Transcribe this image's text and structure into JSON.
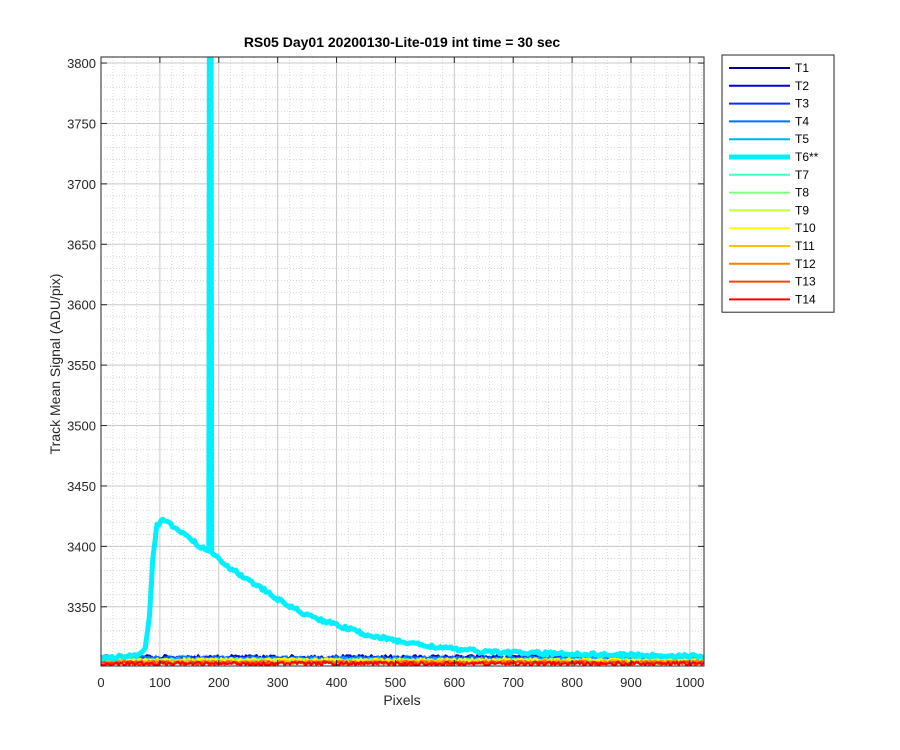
{
  "chart_data": {
    "type": "line",
    "title": "RS05 Day01 20200130-Lite-019 int time = 30 sec",
    "xlabel": "Pixels",
    "ylabel": "Track Mean Signal (ADU/pix)",
    "xlim": [
      0,
      1024
    ],
    "ylim": [
      3301,
      3805
    ],
    "xticks": [
      0,
      100,
      200,
      300,
      400,
      500,
      600,
      700,
      800,
      900,
      1000
    ],
    "yticks": [
      3350,
      3400,
      3450,
      3500,
      3550,
      3600,
      3650,
      3700,
      3750,
      3800
    ],
    "grid": true,
    "minor_grid": true,
    "legend_position": "outside-right",
    "series": [
      {
        "name": "T1",
        "color": "#00008f",
        "base": 3306,
        "noise": 1.6,
        "width": 2
      },
      {
        "name": "T2",
        "color": "#0000df",
        "base": 3308.5,
        "noise": 1.6,
        "width": 2
      },
      {
        "name": "T3",
        "color": "#0030ff",
        "base": 3307.5,
        "noise": 1.6,
        "width": 2
      },
      {
        "name": "T4",
        "color": "#0070ff",
        "base": 3307.5,
        "noise": 1.6,
        "width": 2
      },
      {
        "name": "T5",
        "color": "#00b0ff",
        "base": 3306.5,
        "noise": 1.6,
        "width": 2
      },
      {
        "name": "T6**",
        "color": "#00f0ff",
        "highlight": true,
        "width": 5,
        "points": [
          [
            0,
            3308
          ],
          [
            40,
            3309
          ],
          [
            60,
            3310
          ],
          [
            75,
            3316
          ],
          [
            82,
            3340
          ],
          [
            88,
            3390
          ],
          [
            95,
            3418
          ],
          [
            105,
            3421
          ],
          [
            115,
            3419
          ],
          [
            130,
            3414
          ],
          [
            150,
            3407
          ],
          [
            170,
            3399
          ],
          [
            183,
            3396
          ],
          [
            184,
            3805
          ],
          [
            187,
            3805
          ],
          [
            188,
            3395
          ],
          [
            200,
            3390
          ],
          [
            220,
            3382
          ],
          [
            250,
            3372
          ],
          [
            280,
            3363
          ],
          [
            300,
            3356
          ],
          [
            350,
            3343
          ],
          [
            400,
            3335
          ],
          [
            450,
            3327
          ],
          [
            500,
            3322
          ],
          [
            550,
            3318
          ],
          [
            600,
            3315
          ],
          [
            650,
            3313
          ],
          [
            700,
            3312
          ],
          [
            800,
            3311
          ],
          [
            900,
            3310
          ],
          [
            1024,
            3309
          ]
        ]
      },
      {
        "name": "T7",
        "color": "#40ffbf",
        "base": 3305.5,
        "noise": 1.6,
        "width": 2
      },
      {
        "name": "T8",
        "color": "#80ff80",
        "base": 3305.5,
        "noise": 1.6,
        "width": 2
      },
      {
        "name": "T9",
        "color": "#bfff40",
        "base": 3305,
        "noise": 1.6,
        "width": 2
      },
      {
        "name": "T10",
        "color": "#ffff00",
        "base": 3306,
        "noise": 1.6,
        "width": 2
      },
      {
        "name": "T11",
        "color": "#ffbf00",
        "base": 3304.5,
        "noise": 1.6,
        "width": 2
      },
      {
        "name": "T12",
        "color": "#ff8000",
        "base": 3304,
        "noise": 1.6,
        "width": 2
      },
      {
        "name": "T13",
        "color": "#ff4000",
        "base": 3303.5,
        "noise": 1.6,
        "width": 2
      },
      {
        "name": "T14",
        "color": "#ff0000",
        "base": 3303,
        "noise": 1.6,
        "width": 2
      }
    ]
  }
}
